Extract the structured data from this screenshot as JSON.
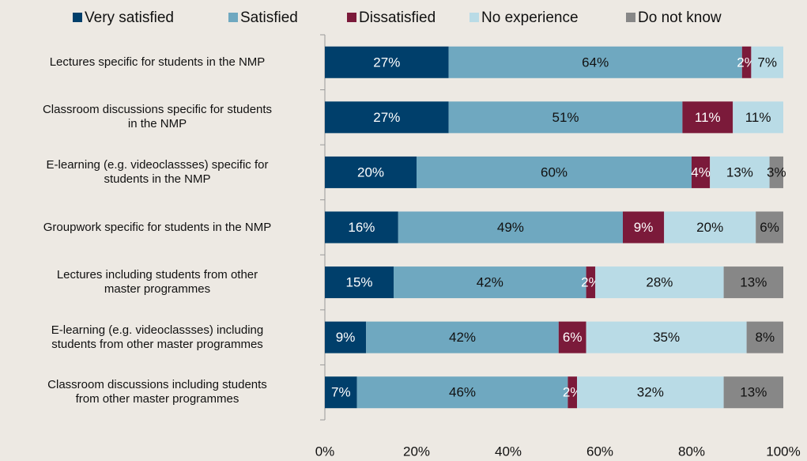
{
  "chart_data": {
    "type": "stacked_bar_horizontal",
    "categories": [
      "Lectures specific for students in the NMP",
      "Classroom discussions specific for students\nin the NMP",
      "E-learning (e.g. videoclassses) specific for\nstudents in the NMP",
      "Groupwork specific for students in the NMP",
      "Lectures including students from other\nmaster programmes",
      "E-learning (e.g. videoclassses) including\nstudents from other master programmes",
      "Classroom discussions including students\nfrom other master programmes"
    ],
    "series": [
      {
        "name": "Very satisfied",
        "color": "#003f6b",
        "label_color": "#ffffff",
        "values": [
          27,
          27,
          20,
          16,
          15,
          9,
          7
        ],
        "value_labels": [
          "27%",
          "27%",
          "20%",
          "16%",
          "15%",
          "9%",
          "7%"
        ]
      },
      {
        "name": "Satisfied",
        "color": "#6fa8c0",
        "label_color": "#111111",
        "values": [
          64,
          51,
          60,
          49,
          42,
          42,
          46
        ],
        "value_labels": [
          "64%",
          "51%",
          "60%",
          "49%",
          "42%",
          "42%",
          "46%"
        ]
      },
      {
        "name": "Dissatisfied",
        "color": "#7b1a3a",
        "label_color": "#ffffff",
        "values": [
          2,
          11,
          4,
          9,
          2,
          6,
          2
        ],
        "value_labels": [
          "2%",
          "11%",
          "4%",
          "9%",
          "2%",
          "6%",
          "2%"
        ]
      },
      {
        "name": "No experience",
        "color": "#b9dbe6",
        "label_color": "#111111",
        "values": [
          7,
          11,
          13,
          20,
          28,
          35,
          32
        ],
        "value_labels": [
          "7%",
          "11%",
          "13%",
          "20%",
          "28%",
          "35%",
          "32%"
        ]
      },
      {
        "name": "Do not know",
        "color": "#878787",
        "label_color": "#111111",
        "values": [
          null,
          null,
          3,
          6,
          13,
          8,
          13
        ],
        "value_labels": [
          null,
          null,
          "3%",
          "6%",
          "13%",
          "8%",
          "13%"
        ]
      }
    ],
    "xlim": [
      0,
      100
    ],
    "xticks": [
      {
        "value": 0,
        "label": "0%"
      },
      {
        "value": 20,
        "label": "20%"
      },
      {
        "value": 40,
        "label": "40%"
      },
      {
        "value": 60,
        "label": "60%"
      },
      {
        "value": 80,
        "label": "80%"
      },
      {
        "value": 100,
        "label": "100%"
      }
    ],
    "legend": "top"
  }
}
